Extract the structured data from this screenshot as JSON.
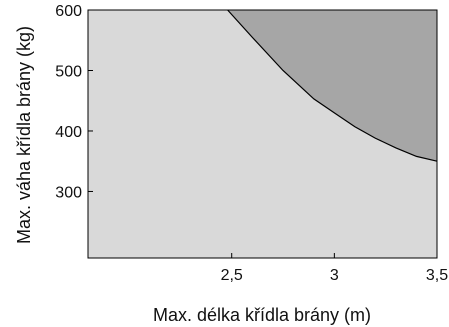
{
  "chart_data": {
    "type": "area",
    "title": "",
    "xlabel": "Max. délka křídla brány (m)",
    "ylabel": "Max. váha křídla brány (kg)",
    "xlim": [
      1.8,
      3.5
    ],
    "ylim": [
      190,
      600
    ],
    "x_ticks": [
      2.5,
      3,
      3.5
    ],
    "x_tick_labels": [
      "2,5",
      "3",
      "3,5"
    ],
    "y_ticks": [
      300,
      400,
      500,
      600
    ],
    "y_tick_labels": [
      "300",
      "400",
      "500",
      "600"
    ],
    "grid": false,
    "legend": "none",
    "series": [
      {
        "x": [
          2.48,
          2.6,
          2.75,
          2.9,
          3.0,
          3.1,
          3.2,
          3.3,
          3.4,
          3.5
        ],
        "y": [
          600,
          555,
          500,
          453,
          430,
          407,
          388,
          372,
          358,
          350
        ]
      }
    ],
    "colors": {
      "background_region": "#d9d9d9",
      "upper_region": "#a6a6a6",
      "curve": "#000000",
      "frame": "#000000"
    }
  }
}
